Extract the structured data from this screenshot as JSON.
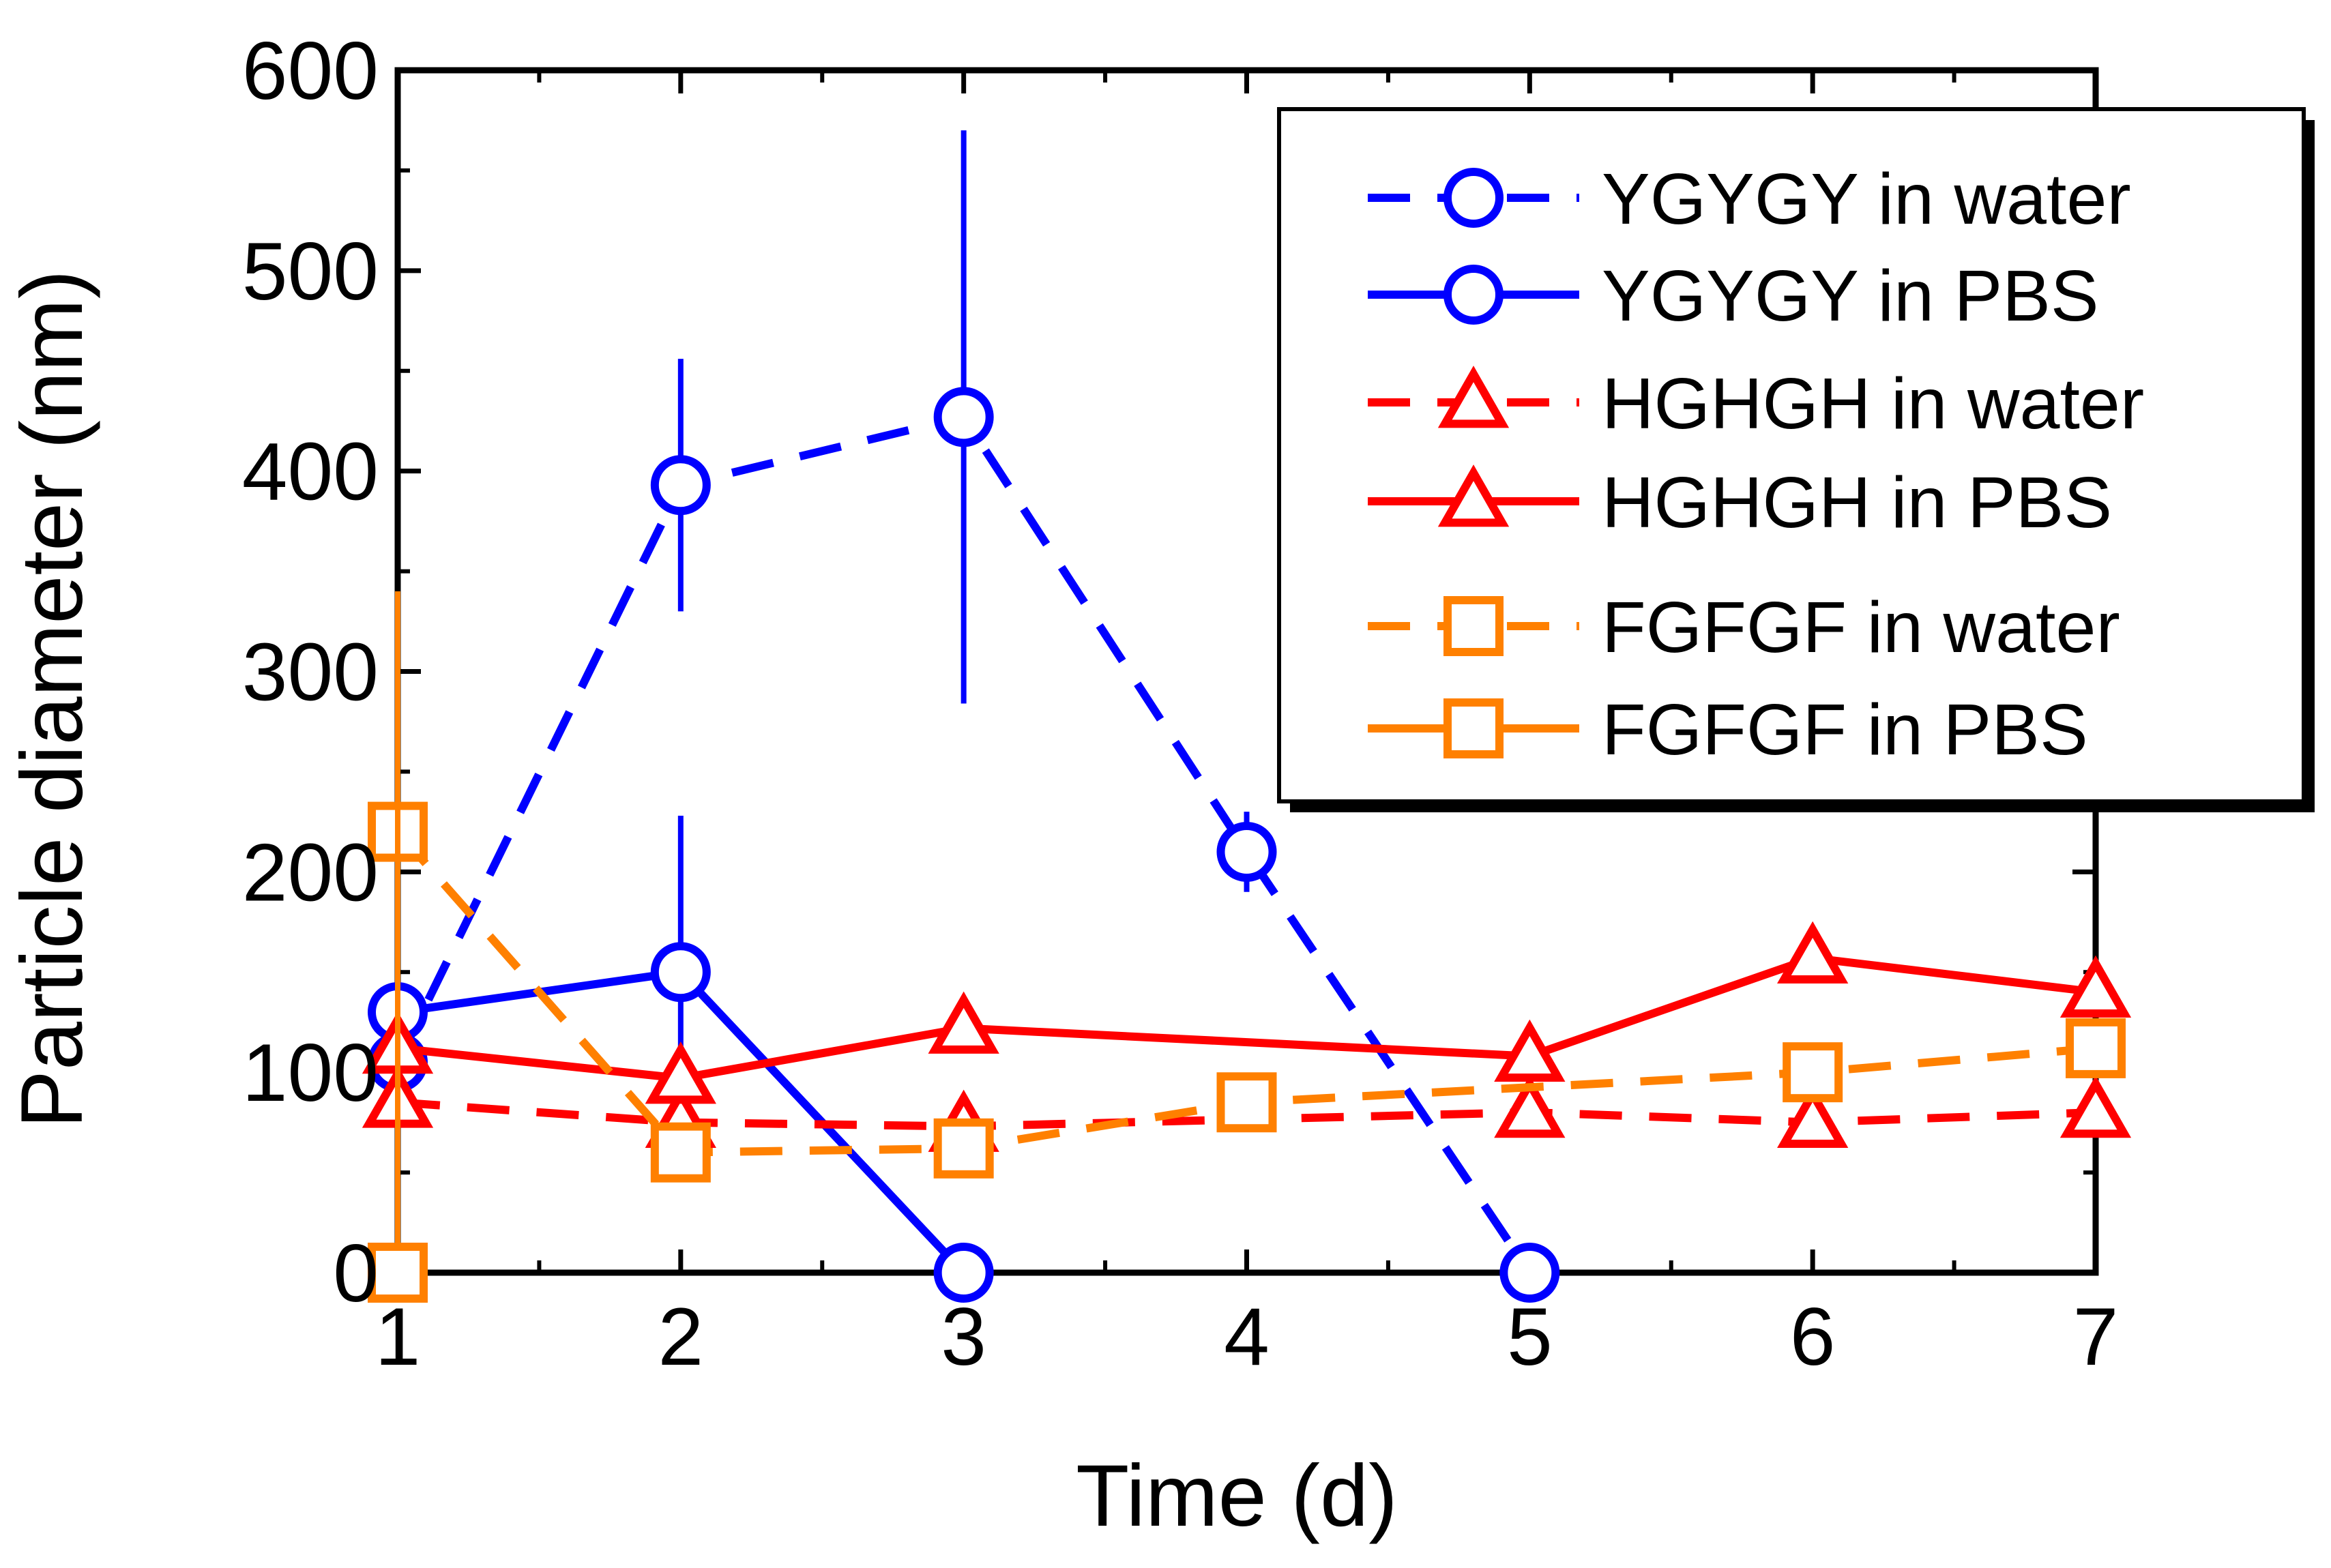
{
  "chart_data": {
    "type": "line",
    "xlabel": "Time (d)",
    "ylabel": "Particle diameter (nm)",
    "xlim": [
      1,
      7
    ],
    "ylim": [
      0,
      600
    ],
    "x_ticks": [
      "1",
      "2",
      "3",
      "4",
      "5",
      "6",
      "7"
    ],
    "y_ticks": [
      "0",
      "100",
      "200",
      "300",
      "400",
      "500",
      "600"
    ],
    "legend_position": "top-right",
    "series": [
      {
        "name": "YGYGY in water",
        "color": "#0000ff",
        "marker": "circle",
        "line": "dashed",
        "x": [
          1,
          2,
          3,
          4,
          5
        ],
        "y": [
          105,
          393,
          427,
          210,
          0
        ],
        "error": [
          0,
          63,
          143,
          20,
          0
        ]
      },
      {
        "name": "YGYGY in PBS",
        "color": "#0000ff",
        "marker": "circle",
        "line": "solid",
        "x": [
          1,
          2,
          3
        ],
        "y": [
          130,
          150,
          0
        ],
        "error": [
          0,
          78,
          0
        ]
      },
      {
        "name": "HGHGH in water",
        "color": "#ff0000",
        "marker": "triangle",
        "line": "dashed",
        "x": [
          1,
          2,
          3,
          5,
          6,
          7
        ],
        "y": [
          85,
          75,
          73,
          80,
          75,
          80
        ],
        "error": [
          0,
          0,
          0,
          0,
          0,
          0
        ]
      },
      {
        "name": "HGHGH in PBS",
        "color": "#ff0000",
        "marker": "triangle",
        "line": "solid",
        "x": [
          1,
          2,
          3,
          5,
          6,
          7
        ],
        "y": [
          112,
          97,
          122,
          108,
          157,
          140
        ],
        "error": [
          0,
          0,
          0,
          0,
          0,
          0
        ]
      },
      {
        "name": "FGFGF in water",
        "color": "#ff8000",
        "marker": "square",
        "line": "dashed",
        "x": [
          1,
          2,
          3,
          4,
          6,
          7
        ],
        "y": [
          220,
          60,
          62,
          85,
          100,
          112
        ],
        "error": [
          0,
          0,
          0,
          0,
          0,
          0
        ]
      },
      {
        "name": "FGFGF in PBS",
        "color": "#ff8000",
        "marker": "square",
        "line": "solid",
        "x": [
          1
        ],
        "y": [
          0
        ],
        "error": [
          0
        ],
        "error_plus": [
          340
        ]
      }
    ]
  }
}
